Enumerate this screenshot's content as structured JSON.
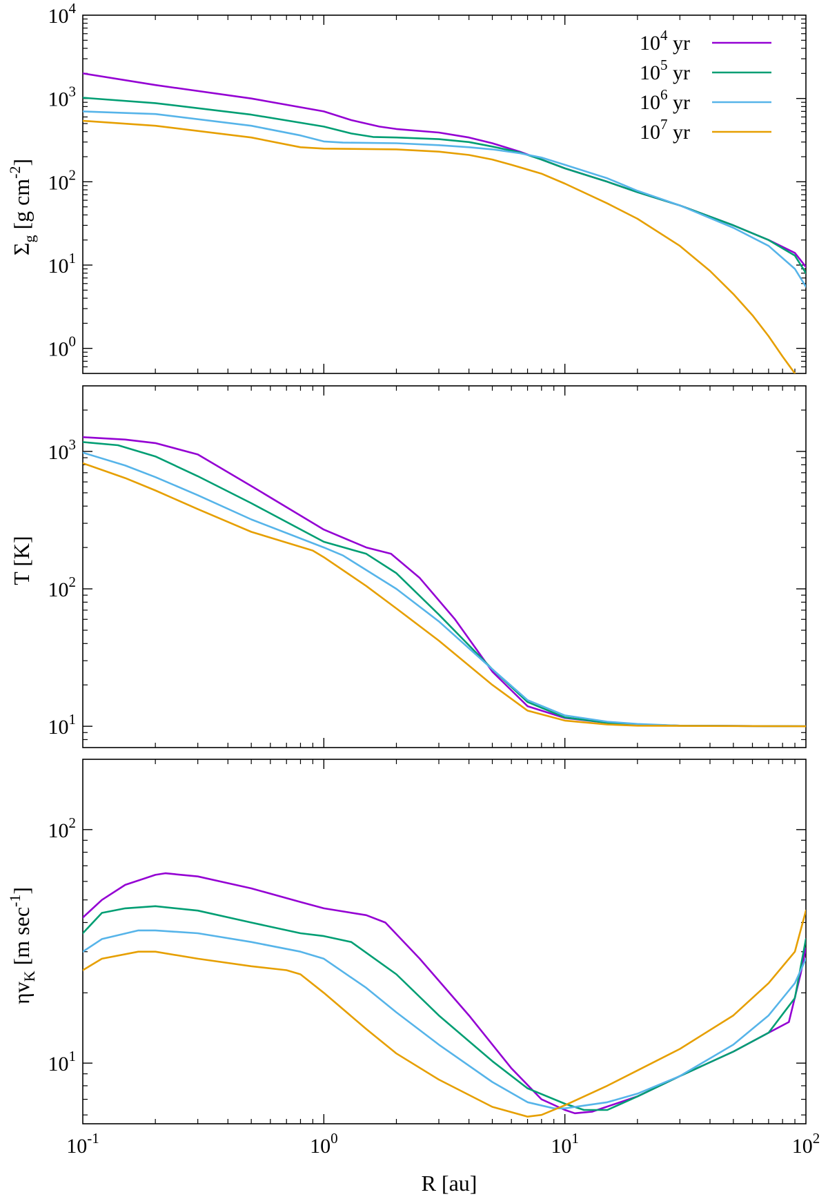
{
  "chart_data": [
    {
      "type": "line",
      "xscale": "log",
      "yscale": "log",
      "xlim": [
        0.1,
        100
      ],
      "ylim": [
        0.5,
        10000
      ],
      "xlabel": "",
      "ylabel": "Σg [g cm-2]",
      "xticklabels_shown": false,
      "yticks": [
        {
          "value": 1,
          "base": "10",
          "exp": "0"
        },
        {
          "value": 10,
          "base": "10",
          "exp": "1"
        },
        {
          "value": 100,
          "base": "10",
          "exp": "2"
        },
        {
          "value": 1000,
          "base": "10",
          "exp": "3"
        },
        {
          "value": 10000,
          "base": "10",
          "exp": "4"
        }
      ],
      "grid": false,
      "legend": "top-right",
      "series": [
        {
          "name": "10^4 yr",
          "color": "#9400d3",
          "x": [
            0.1,
            0.2,
            0.5,
            1.0,
            1.3,
            1.7,
            2.0,
            3.0,
            4.0,
            5.0,
            6.5,
            8.0,
            10,
            15,
            20,
            30,
            50,
            70,
            90,
            100
          ],
          "y": [
            2000,
            1450,
            1000,
            700,
            550,
            460,
            430,
            390,
            340,
            290,
            230,
            185,
            145,
            100,
            75,
            52,
            30,
            20,
            14,
            9.5
          ]
        },
        {
          "name": "10^5 yr",
          "color": "#009e73",
          "x": [
            0.1,
            0.2,
            0.5,
            1.0,
            1.3,
            1.6,
            2.0,
            3.0,
            4.0,
            5.0,
            6.5,
            8.0,
            10,
            15,
            20,
            30,
            50,
            70,
            90,
            100
          ],
          "y": [
            1020,
            880,
            640,
            460,
            380,
            345,
            340,
            325,
            300,
            265,
            225,
            185,
            145,
            100,
            75,
            52,
            30,
            20,
            13,
            8
          ]
        },
        {
          "name": "10^6 yr",
          "color": "#56b4e9",
          "x": [
            0.1,
            0.2,
            0.5,
            0.8,
            1.0,
            1.2,
            2.0,
            3.0,
            4.0,
            5.0,
            6.5,
            8.0,
            10,
            15,
            20,
            30,
            50,
            70,
            90,
            100
          ],
          "y": [
            700,
            650,
            470,
            360,
            305,
            295,
            290,
            275,
            260,
            245,
            220,
            195,
            160,
            110,
            78,
            52,
            28,
            17,
            9,
            5.5
          ]
        },
        {
          "name": "10^7 yr",
          "color": "#e69f00",
          "x": [
            0.1,
            0.2,
            0.5,
            0.8,
            1.0,
            2.0,
            3.0,
            4.0,
            5.0,
            6.0,
            8.0,
            10,
            15,
            20,
            30,
            40,
            50,
            60,
            70,
            80,
            90
          ],
          "y": [
            540,
            470,
            340,
            260,
            250,
            245,
            230,
            210,
            185,
            160,
            125,
            95,
            55,
            36,
            17,
            8.5,
            4.5,
            2.5,
            1.4,
            0.8,
            0.5
          ]
        }
      ]
    },
    {
      "type": "line",
      "xscale": "log",
      "yscale": "log",
      "xlim": [
        0.1,
        100
      ],
      "ylim": [
        7,
        3000
      ],
      "xlabel": "",
      "ylabel": "T [K]",
      "xticklabels_shown": false,
      "yticks": [
        {
          "value": 10,
          "base": "10",
          "exp": "1"
        },
        {
          "value": 100,
          "base": "10",
          "exp": "2"
        },
        {
          "value": 1000,
          "base": "10",
          "exp": "3"
        }
      ],
      "grid": false,
      "series": [
        {
          "name": "10^4 yr",
          "color": "#9400d3",
          "x": [
            0.1,
            0.15,
            0.2,
            0.3,
            0.5,
            1.0,
            1.5,
            1.9,
            2.5,
            3.5,
            5.0,
            7.0,
            10,
            15,
            20,
            30,
            100
          ],
          "y": [
            1270,
            1220,
            1150,
            950,
            560,
            270,
            200,
            180,
            120,
            60,
            25,
            14,
            11.5,
            10.6,
            10.3,
            10.1,
            10
          ]
        },
        {
          "name": "10^5 yr",
          "color": "#009e73",
          "x": [
            0.1,
            0.14,
            0.2,
            0.3,
            0.5,
            1.0,
            1.5,
            2.0,
            3.0,
            5.0,
            7.0,
            10,
            15,
            20,
            30,
            100
          ],
          "y": [
            1170,
            1110,
            920,
            660,
            420,
            220,
            180,
            130,
            65,
            26,
            15,
            11.6,
            10.6,
            10.3,
            10.1,
            10
          ]
        },
        {
          "name": "10^6 yr",
          "color": "#56b4e9",
          "x": [
            0.1,
            0.15,
            0.2,
            0.3,
            0.5,
            1.0,
            1.2,
            2.0,
            3.0,
            5.0,
            7.0,
            10,
            15,
            20,
            30,
            100
          ],
          "y": [
            980,
            790,
            650,
            480,
            320,
            200,
            175,
            100,
            58,
            26,
            15.5,
            12,
            10.8,
            10.4,
            10.1,
            10
          ]
        },
        {
          "name": "10^7 yr",
          "color": "#e69f00",
          "x": [
            0.1,
            0.15,
            0.2,
            0.3,
            0.5,
            0.9,
            1.0,
            1.5,
            2.0,
            3.0,
            5.0,
            7.0,
            10,
            15,
            20,
            100
          ],
          "y": [
            820,
            640,
            520,
            380,
            260,
            190,
            170,
            105,
            72,
            42,
            20,
            13,
            11,
            10.3,
            10.1,
            10
          ]
        }
      ]
    },
    {
      "type": "line",
      "xscale": "log",
      "yscale": "log",
      "xlim": [
        0.1,
        100
      ],
      "ylim": [
        5.5,
        200
      ],
      "xlabel": "R [au]",
      "ylabel": "ηvK [m sec-1]",
      "xticks": [
        {
          "value": 0.1,
          "base": "10",
          "exp": "-1"
        },
        {
          "value": 1,
          "base": "10",
          "exp": "0"
        },
        {
          "value": 10,
          "base": "10",
          "exp": "1"
        },
        {
          "value": 100,
          "base": "10",
          "exp": "2"
        }
      ],
      "yticks": [
        {
          "value": 10,
          "base": "10",
          "exp": "1"
        },
        {
          "value": 100,
          "base": "10",
          "exp": "2"
        }
      ],
      "grid": false,
      "series": [
        {
          "name": "10^4 yr",
          "color": "#9400d3",
          "x": [
            0.1,
            0.12,
            0.15,
            0.2,
            0.22,
            0.3,
            0.5,
            0.8,
            1.0,
            1.5,
            1.8,
            2.5,
            4.0,
            6.0,
            8.0,
            10,
            11,
            13,
            20,
            30,
            50,
            70,
            85,
            95,
            100
          ],
          "y": [
            42,
            50,
            58,
            64,
            65,
            63,
            56,
            49,
            46,
            43,
            40,
            28,
            16,
            9.5,
            7.0,
            6.3,
            6.1,
            6.2,
            7.2,
            8.8,
            11.2,
            13.5,
            15,
            24,
            31
          ]
        },
        {
          "name": "10^5 yr",
          "color": "#009e73",
          "x": [
            0.1,
            0.12,
            0.15,
            0.2,
            0.3,
            0.5,
            0.8,
            1.0,
            1.3,
            2.0,
            3.0,
            5.0,
            7.0,
            10,
            12,
            15,
            20,
            30,
            50,
            70,
            90,
            100
          ],
          "y": [
            36,
            44,
            46,
            47,
            45,
            40,
            36,
            35,
            33,
            24,
            16,
            10.2,
            7.8,
            6.7,
            6.3,
            6.3,
            7.2,
            8.8,
            11.2,
            13.5,
            19,
            34
          ]
        },
        {
          "name": "10^6 yr",
          "color": "#56b4e9",
          "x": [
            0.1,
            0.12,
            0.17,
            0.2,
            0.3,
            0.5,
            0.8,
            1.0,
            1.5,
            2.0,
            3.0,
            5.0,
            7.0,
            9.0,
            10,
            15,
            20,
            30,
            50,
            70,
            90,
            100
          ],
          "y": [
            30,
            34,
            37,
            37,
            36,
            33,
            30,
            28,
            21,
            16.5,
            12,
            8.3,
            6.8,
            6.4,
            6.4,
            6.8,
            7.4,
            8.8,
            12,
            16,
            22,
            28
          ]
        },
        {
          "name": "10^7 yr",
          "color": "#e69f00",
          "x": [
            0.1,
            0.12,
            0.17,
            0.2,
            0.3,
            0.5,
            0.7,
            0.8,
            1.0,
            1.5,
            2.0,
            3.0,
            5.0,
            7.0,
            8.0,
            10,
            15,
            20,
            30,
            50,
            70,
            90,
            100
          ],
          "y": [
            25,
            28,
            30,
            30,
            28,
            26,
            25,
            24,
            20,
            14,
            11,
            8.5,
            6.5,
            5.9,
            6.0,
            6.6,
            8.0,
            9.3,
            11.5,
            16,
            22,
            30,
            45
          ]
        }
      ]
    }
  ]
}
